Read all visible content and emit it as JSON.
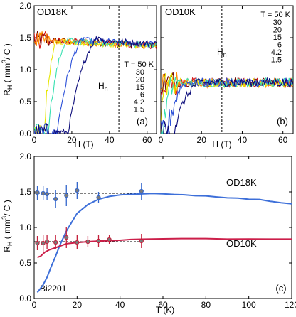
{
  "colors": {
    "frame": "#000000",
    "dashed": "#000000",
    "T50": "#6b0000",
    "T30": "#d41a1a",
    "T20": "#ff8c00",
    "T15": "#e6e600",
    "T6": "#36e0b0",
    "T4_2": "#2a4fd8",
    "T1_5": "#0c0c7a",
    "od18k_curve": "#3d6fd9",
    "od10k_curve": "#cc1f4a",
    "pt_red": "#c41e3a",
    "pt_blue": "#3366cc"
  },
  "chart_data": [
    {
      "id": "a",
      "type": "line",
      "panel_tag": "(a)",
      "sample": "OD18K",
      "xlabel": "H (T)",
      "ylabel_main": "R",
      "ylabel_sub": "H",
      "ylabel_unit": " ( mm",
      "ylabel_sup": "3",
      "ylabel_end": "/ C )",
      "xlim": [
        0,
        65
      ],
      "ylim": [
        0,
        2.0
      ],
      "xticks": [
        "0",
        "20",
        "40",
        "60"
      ],
      "yticks": [
        "0.0",
        "0.5",
        "1.0",
        "1.5",
        "2.0"
      ],
      "hn_main": "H",
      "hn_sub": "n",
      "hn_value": 45,
      "legend_title": "T = 50 K",
      "legend_entries": [
        "30",
        "20",
        "15",
        "6",
        "4.2",
        "1.5"
      ],
      "series": [
        {
          "key": "T50",
          "onset": 0,
          "width": 0,
          "plateau": 1.47,
          "slope": -0.0015
        },
        {
          "key": "T30",
          "onset": 0,
          "width": 0,
          "plateau": 1.47,
          "slope": -0.0015
        },
        {
          "key": "T20",
          "onset": 0,
          "width": 0,
          "plateau": 1.46,
          "slope": -0.0014
        },
        {
          "key": "T15",
          "onset": 5,
          "width": 8,
          "plateau": 1.45,
          "slope": -0.0012
        },
        {
          "key": "T6",
          "onset": 7,
          "width": 12,
          "plateau": 1.48,
          "slope": -0.0015
        },
        {
          "key": "T4_2",
          "onset": 12,
          "width": 16,
          "plateau": 1.5,
          "slope": -0.0016
        },
        {
          "key": "T1_5",
          "onset": 18,
          "width": 18,
          "plateau": 1.52,
          "slope": -0.0018
        }
      ]
    },
    {
      "id": "b",
      "type": "line",
      "panel_tag": "(b)",
      "sample": "OD10K",
      "xlabel": "H (T)",
      "xlim": [
        0,
        65
      ],
      "ylim": [
        0,
        2.0
      ],
      "xticks": [
        "0",
        "20",
        "40",
        "60"
      ],
      "hn_main": "H",
      "hn_sub": "n",
      "hn_value": 30,
      "legend_title": "T = 50 K",
      "legend_entries": [
        "30",
        "20",
        "15",
        "6",
        "4.2",
        "1.5"
      ],
      "series": [
        {
          "key": "T50",
          "onset": 0,
          "width": 0,
          "plateau": 0.8,
          "slope": 0
        },
        {
          "key": "T30",
          "onset": 0,
          "width": 0,
          "plateau": 0.8,
          "slope": 0
        },
        {
          "key": "T20",
          "onset": 0,
          "width": 0,
          "plateau": 0.79,
          "slope": 0
        },
        {
          "key": "T15",
          "onset": 0,
          "width": 2,
          "plateau": 0.79,
          "slope": 0
        },
        {
          "key": "T6",
          "onset": 1,
          "width": 6,
          "plateau": 0.8,
          "slope": 0
        },
        {
          "key": "T4_2",
          "onset": 3,
          "width": 10,
          "plateau": 0.8,
          "slope": 0
        },
        {
          "key": "T1_5",
          "onset": 6,
          "width": 14,
          "plateau": 0.8,
          "slope": 0
        }
      ]
    },
    {
      "id": "c",
      "type": "scatter",
      "panel_tag": "(c)",
      "compound": "Bi2201",
      "xlabel": "T (K)",
      "ylabel_main": "R",
      "ylabel_sub": "H",
      "ylabel_unit": " ( mm",
      "ylabel_sup": "3",
      "ylabel_end": "/ C )",
      "xlim": [
        0,
        120
      ],
      "ylim": [
        0,
        2.0
      ],
      "xticks": [
        "0",
        "20",
        "40",
        "60",
        "80",
        "100",
        "120"
      ],
      "yticks": [
        "0.0",
        "0.5",
        "1.0",
        "1.5",
        "2.0"
      ],
      "curve_labels": [
        "OD18K",
        "OD10K"
      ],
      "od18k_curve": {
        "x": [
          1.5,
          4,
          6,
          8,
          10,
          12,
          15,
          18,
          20,
          25,
          30,
          35,
          40,
          45,
          50,
          55,
          60,
          65,
          70,
          75,
          80,
          85,
          90,
          95,
          100,
          105,
          110,
          115,
          120
        ],
        "y": [
          0.08,
          0.18,
          0.3,
          0.45,
          0.6,
          0.75,
          0.95,
          1.1,
          1.2,
          1.32,
          1.4,
          1.44,
          1.46,
          1.47,
          1.475,
          1.475,
          1.47,
          1.465,
          1.46,
          1.45,
          1.44,
          1.43,
          1.42,
          1.41,
          1.4,
          1.39,
          1.37,
          1.35,
          1.33
        ]
      },
      "od10k_curve": {
        "x": [
          1.5,
          3,
          5,
          7,
          10,
          15,
          20,
          25,
          30,
          35,
          40,
          45,
          50,
          60,
          70,
          80,
          90,
          100,
          110,
          120
        ],
        "y": [
          0.58,
          0.6,
          0.65,
          0.68,
          0.72,
          0.77,
          0.79,
          0.8,
          0.81,
          0.81,
          0.82,
          0.83,
          0.84,
          0.84,
          0.84,
          0.84,
          0.84,
          0.84,
          0.84,
          0.84
        ]
      },
      "od18k_points": {
        "x": [
          1.5,
          4.2,
          6,
          10,
          15,
          20,
          30,
          50
        ],
        "y": [
          1.49,
          1.48,
          1.47,
          1.4,
          1.45,
          1.52,
          1.42,
          1.51
        ],
        "err": [
          0.1,
          0.1,
          0.08,
          0.12,
          0.15,
          0.12,
          0.08,
          0.12
        ]
      },
      "od10k_points": {
        "x": [
          1.5,
          4.2,
          6,
          10,
          15,
          20,
          25,
          30,
          35,
          50
        ],
        "y": [
          0.78,
          0.78,
          0.8,
          0.79,
          0.86,
          0.79,
          0.8,
          0.81,
          0.83,
          0.81
        ],
        "err": [
          0.1,
          0.12,
          0.1,
          0.1,
          0.15,
          0.1,
          0.08,
          0.08,
          0.06,
          0.1
        ]
      },
      "od18k_dashed_y": 1.48,
      "od18k_dashed_x": [
        0,
        50
      ],
      "od10k_dashed_y": 0.8,
      "od10k_dashed_x": [
        0,
        50
      ]
    }
  ]
}
